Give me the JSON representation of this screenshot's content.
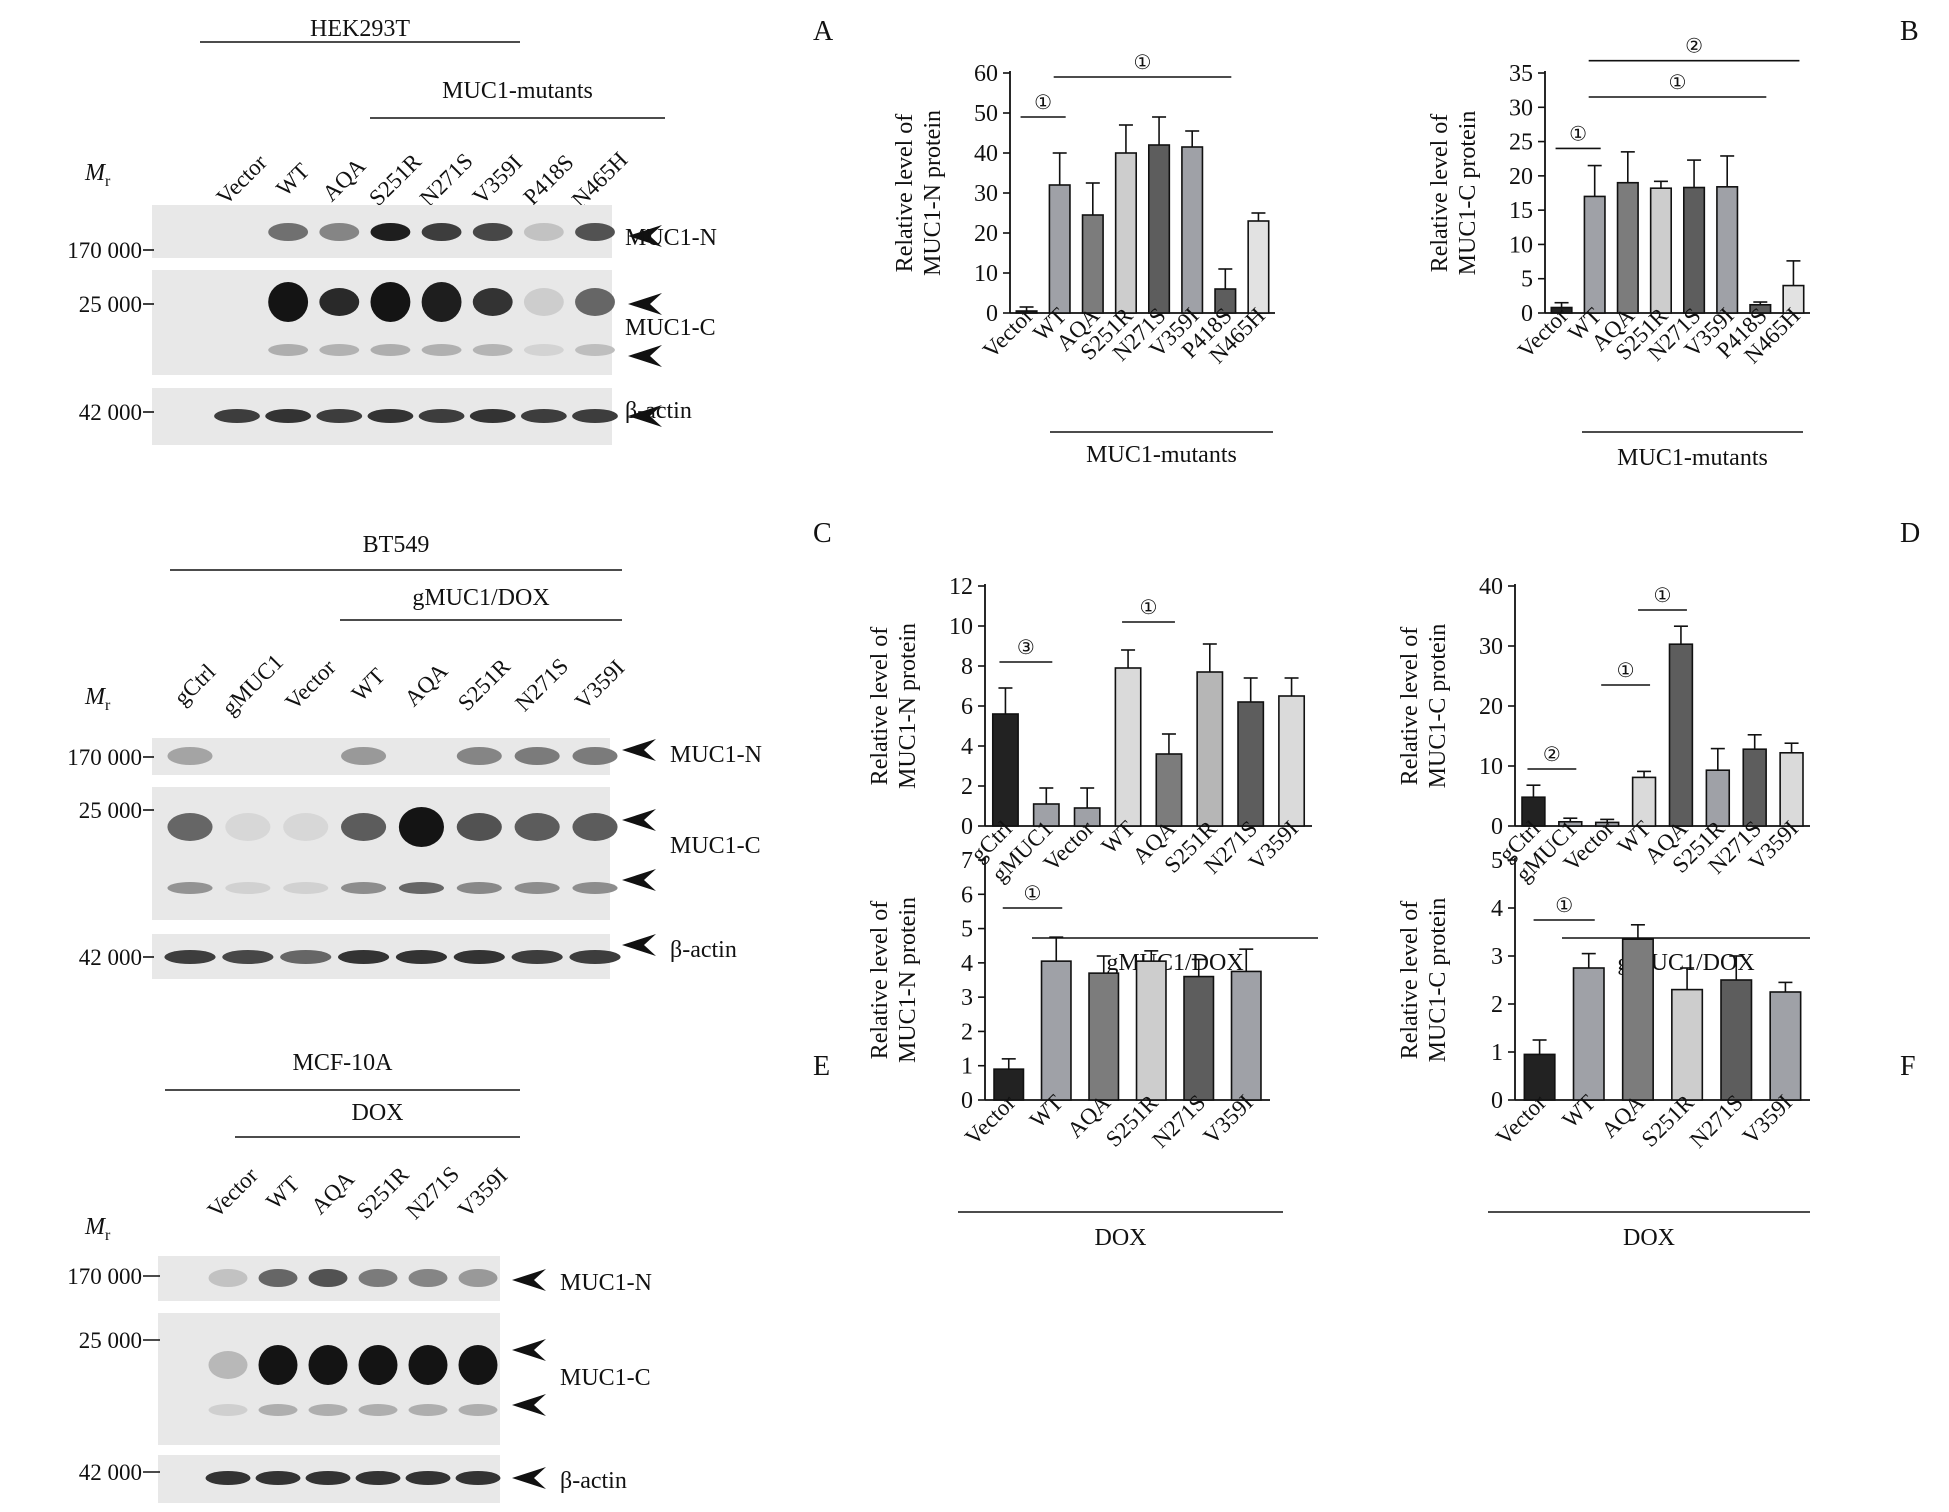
{
  "panel_letters": {
    "A": "A",
    "B": "B",
    "C": "C",
    "D": "D",
    "E": "E",
    "F": "F"
  },
  "blots": [
    {
      "cell_line": "HEK293T",
      "group_label": "MUC1-mutants",
      "mr_label": "M",
      "mr_sub": "r",
      "lanes": [
        "Vector",
        "WT",
        "AQA",
        "S251R",
        "N271S",
        "V359I",
        "P418S",
        "N465H"
      ],
      "markers": [
        "170 000",
        "25 000",
        "42 000"
      ],
      "bands": [
        "MUC1-N",
        "MUC1-C",
        "β-actin"
      ],
      "muc1n_intensity": [
        0.0,
        0.55,
        0.45,
        0.95,
        0.8,
        0.75,
        0.15,
        0.7
      ],
      "muc1c_intensity": [
        0.0,
        1.0,
        0.9,
        1.0,
        0.95,
        0.85,
        0.1,
        0.6
      ],
      "actin_intensity": [
        0.8,
        0.85,
        0.8,
        0.85,
        0.8,
        0.85,
        0.8,
        0.8
      ]
    },
    {
      "cell_line": "BT549",
      "group_label": "gMUC1/DOX",
      "mr_label": "M",
      "mr_sub": "r",
      "lanes": [
        "gCtrl",
        "gMUC1",
        "Vector",
        "WT",
        "AQA",
        "S251R",
        "N271S",
        "V359I"
      ],
      "markers": [
        "170 000",
        "25 000",
        "42 000"
      ],
      "bands": [
        "MUC1-N",
        "MUC1-C",
        "β-actin"
      ],
      "muc1n_intensity": [
        0.3,
        0.0,
        0.0,
        0.35,
        0.0,
        0.45,
        0.5,
        0.5
      ],
      "muc1c_intensity": [
        0.6,
        0.05,
        0.05,
        0.65,
        1.0,
        0.7,
        0.65,
        0.65
      ],
      "actin_intensity": [
        0.8,
        0.75,
        0.6,
        0.85,
        0.85,
        0.85,
        0.8,
        0.8
      ]
    },
    {
      "cell_line": "MCF-10A",
      "group_label": "DOX",
      "mr_label": "M",
      "mr_sub": "r",
      "lanes": [
        "Vector",
        "WT",
        "AQA",
        "S251R",
        "N271S",
        "V359I"
      ],
      "markers": [
        "170 000",
        "25 000",
        "42 000"
      ],
      "bands": [
        "MUC1-N",
        "MUC1-C",
        "β-actin"
      ],
      "muc1n_intensity": [
        0.15,
        0.6,
        0.7,
        0.5,
        0.45,
        0.35
      ],
      "muc1c_intensity": [
        0.2,
        1.0,
        1.0,
        1.0,
        1.0,
        1.0
      ],
      "actin_intensity": [
        0.85,
        0.85,
        0.85,
        0.85,
        0.85,
        0.85
      ]
    }
  ],
  "chart_data": [
    {
      "panel": "A",
      "type": "bar",
      "ylabel": [
        "Relative level of",
        "MUC1-N protein"
      ],
      "ylim": [
        0,
        60
      ],
      "yticks": [
        0,
        10,
        20,
        30,
        40,
        50,
        60
      ],
      "categories": [
        "Vector",
        "WT",
        "AQA",
        "S251R",
        "N271S",
        "V359I",
        "P418S",
        "N465H"
      ],
      "values": [
        0.5,
        32,
        24.5,
        40,
        42,
        41.5,
        6,
        23
      ],
      "errors": [
        1,
        8,
        8,
        7,
        7,
        4,
        5,
        2
      ],
      "colors": [
        "#222222",
        "#9fa1a7",
        "#7c7c7c",
        "#cdcdcd",
        "#5d5d5d",
        "#9fa1a7",
        "#5d5d5d",
        "#e2e2e2"
      ],
      "group_label": "MUC1-mutants",
      "brackets": [
        {
          "from": 0,
          "to": 1,
          "label": "①",
          "y": 49
        },
        {
          "from": 1,
          "to": 6,
          "label": "①",
          "y": 59
        }
      ]
    },
    {
      "panel": "B",
      "type": "bar",
      "ylabel": [
        "Relative level of",
        "MUC1-C protein"
      ],
      "ylim": [
        0,
        35
      ],
      "yticks": [
        0,
        5,
        10,
        15,
        20,
        25,
        30,
        35
      ],
      "categories": [
        "Vector",
        "WT",
        "AQA",
        "S251R",
        "N271S",
        "V359I",
        "P418S",
        "N465H"
      ],
      "values": [
        0.8,
        17,
        19,
        18.2,
        18.3,
        18.4,
        1.2,
        4
      ],
      "errors": [
        0.7,
        4.5,
        4.5,
        1,
        4,
        4.5,
        0.4,
        3.6
      ],
      "colors": [
        "#222222",
        "#9fa1a7",
        "#7c7c7c",
        "#cdcdcd",
        "#5d5d5d",
        "#9fa1a7",
        "#5d5d5d",
        "#e2e2e2"
      ],
      "group_label": "MUC1-mutants",
      "brackets": [
        {
          "from": 0,
          "to": 1,
          "label": "①",
          "y": 24
        },
        {
          "from": 1,
          "to": 6,
          "label": "①",
          "y": 31.5
        },
        {
          "from": 1,
          "to": 7,
          "label": "②",
          "y": 36.8
        }
      ]
    },
    {
      "panel": "C",
      "type": "bar",
      "ylabel": [
        "Relative level of",
        "MUC1-N protein"
      ],
      "ylim": [
        0,
        12
      ],
      "yticks": [
        0,
        2,
        4,
        6,
        8,
        10,
        12
      ],
      "categories": [
        "gCtrl",
        "gMUC1",
        "Vector",
        "WT",
        "AQA",
        "S251R",
        "N271S",
        "V359I"
      ],
      "values": [
        5.6,
        1.1,
        0.9,
        7.9,
        3.6,
        7.7,
        6.2,
        6.5
      ],
      "errors": [
        1.3,
        0.8,
        1.0,
        0.9,
        1.0,
        1.4,
        1.2,
        0.9
      ],
      "colors": [
        "#222222",
        "#9fa1a7",
        "#9fa1a7",
        "#dadada",
        "#7c7c7c",
        "#b6b6b6",
        "#5d5d5d",
        "#dadada"
      ],
      "group_label": "gMUC1/DOX",
      "brackets": [
        {
          "from": 0,
          "to": 1,
          "label": "③",
          "y": 8.2
        },
        {
          "from": 3,
          "to": 4,
          "label": "①",
          "y": 10.2
        }
      ]
    },
    {
      "panel": "D",
      "type": "bar",
      "ylabel": [
        "Relative level of",
        "MUC1-C protein"
      ],
      "ylim": [
        0,
        40
      ],
      "yticks": [
        0,
        10,
        20,
        30,
        40
      ],
      "categories": [
        "gCtrl",
        "gMUC1",
        "Vector",
        "WT",
        "AQA",
        "S251R",
        "N271S",
        "V359I"
      ],
      "values": [
        4.8,
        0.7,
        0.6,
        8.1,
        30.3,
        9.3,
        12.8,
        12.2
      ],
      "errors": [
        2.0,
        0.6,
        0.5,
        1.0,
        3.0,
        3.6,
        2.4,
        1.6
      ],
      "colors": [
        "#222222",
        "#9fa1a7",
        "#9fa1a7",
        "#dadada",
        "#5d5d5d",
        "#9fa1a7",
        "#5d5d5d",
        "#dadada"
      ],
      "group_label": "gMUC1/DOX",
      "brackets": [
        {
          "from": 0,
          "to": 1,
          "label": "②",
          "y": 9.5
        },
        {
          "from": 2,
          "to": 3,
          "label": "①",
          "y": 23.5
        },
        {
          "from": 3,
          "to": 4,
          "label": "①",
          "y": 36
        }
      ]
    },
    {
      "panel": "E",
      "type": "bar",
      "ylabel": [
        "Relative level of",
        "MUC1-N protein"
      ],
      "ylim": [
        0,
        7
      ],
      "yticks": [
        0,
        1,
        2,
        3,
        4,
        5,
        6,
        7
      ],
      "categories": [
        "Vector",
        "WT",
        "AQA",
        "S251R",
        "N271S",
        "V359I"
      ],
      "values": [
        0.9,
        4.05,
        3.7,
        4.05,
        3.6,
        3.75
      ],
      "errors": [
        0.3,
        0.7,
        0.5,
        0.3,
        0.5,
        0.65
      ],
      "colors": [
        "#222222",
        "#9fa1a7",
        "#7c7c7c",
        "#cdcdcd",
        "#5d5d5d",
        "#9fa1a7"
      ],
      "group_label": "DOX",
      "brackets": [
        {
          "from": 0,
          "to": 1,
          "label": "①",
          "y": 5.6
        }
      ]
    },
    {
      "panel": "F",
      "type": "bar",
      "ylabel": [
        "Relative level of",
        "MUC1-C protein"
      ],
      "ylim": [
        0,
        5
      ],
      "yticks": [
        0,
        1,
        2,
        3,
        4,
        5
      ],
      "categories": [
        "Vector",
        "WT",
        "AQA",
        "S251R",
        "N271S",
        "V359I"
      ],
      "values": [
        0.95,
        2.75,
        3.35,
        2.3,
        2.5,
        2.25
      ],
      "errors": [
        0.3,
        0.3,
        0.3,
        0.45,
        0.5,
        0.2
      ],
      "colors": [
        "#222222",
        "#9fa1a7",
        "#7c7c7c",
        "#cdcdcd",
        "#5d5d5d",
        "#9fa1a7"
      ],
      "group_label": "DOX",
      "brackets": [
        {
          "from": 0,
          "to": 1,
          "label": "①",
          "y": 3.75
        }
      ]
    }
  ]
}
